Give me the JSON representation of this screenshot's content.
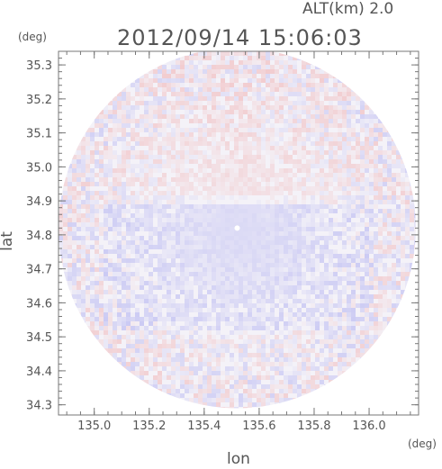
{
  "chart_data": {
    "type": "heatmap",
    "title": "2012/09/14 15:06:03",
    "subtitle": "ALT(km) 2.0",
    "xlabel": "lon",
    "ylabel": "lat",
    "xunit": "(deg)",
    "yunit": "(deg)",
    "xlim": [
      134.87,
      136.18
    ],
    "ylim": [
      34.27,
      35.34
    ],
    "x_ticks": [
      135.0,
      135.2,
      135.4,
      135.6,
      135.8,
      136.0
    ],
    "x_tick_labels": [
      "135.0",
      "135.2",
      "135.4",
      "135.6",
      "135.8",
      "136.0"
    ],
    "y_ticks": [
      34.3,
      34.4,
      34.5,
      34.6,
      34.7,
      34.8,
      34.9,
      35.0,
      35.1,
      35.2,
      35.3
    ],
    "y_tick_labels": [
      "34.3",
      "34.4",
      "34.5",
      "34.6",
      "34.7",
      "34.8",
      "34.9",
      "35.0",
      "35.1",
      "35.2",
      "35.3"
    ],
    "radar_center": {
      "lon": 135.52,
      "lat": 34.82
    },
    "radar_range_deg": {
      "lon": 0.65,
      "lat": 0.53
    },
    "colors": {
      "positive": "#f0a8a8",
      "negative": "#a8a8f0",
      "frame": "#777777",
      "text": "#555555"
    }
  }
}
